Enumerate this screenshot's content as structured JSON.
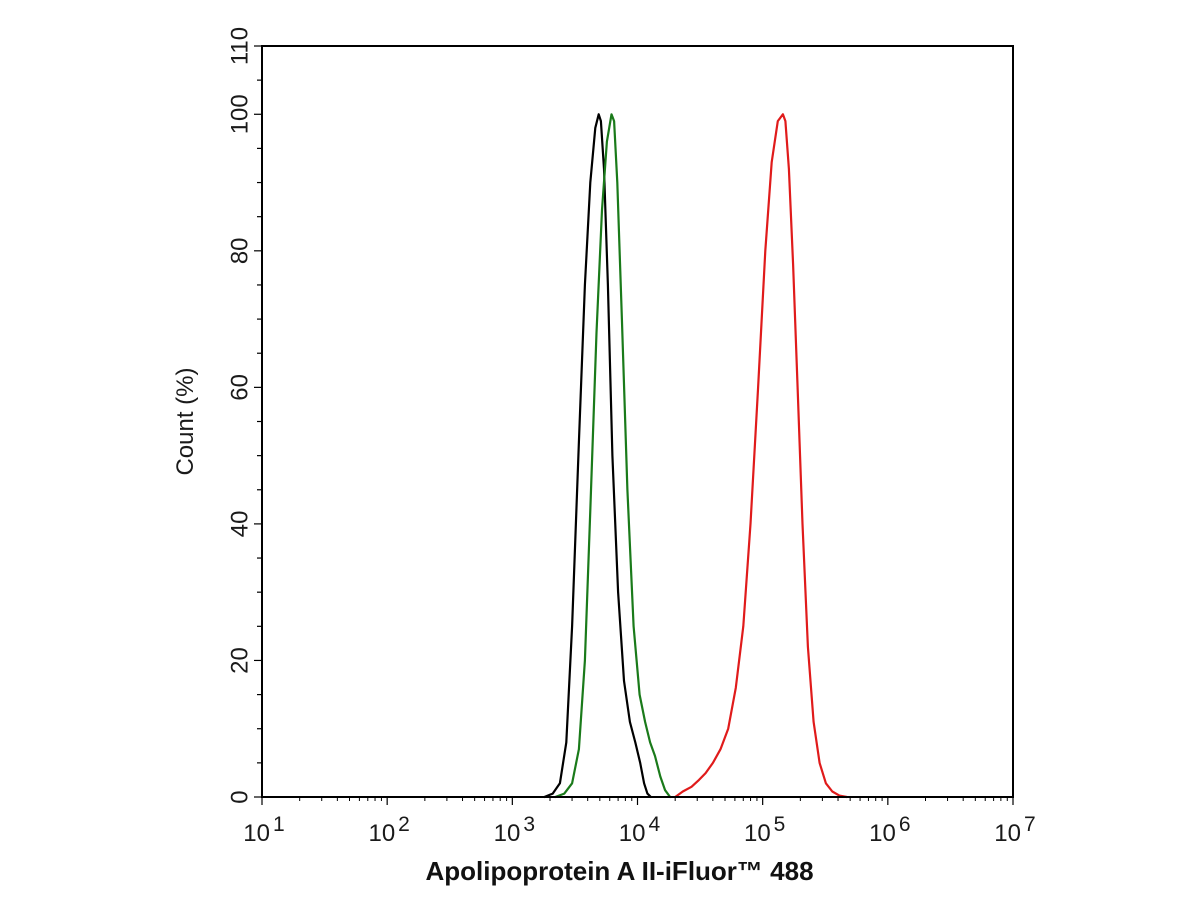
{
  "chart_data": {
    "type": "line",
    "title": "",
    "xlabel": "Apolipoprotein A II-iFluor™ 488",
    "ylabel": "Count  (%)",
    "xscale": "log",
    "xlim": [
      10,
      10000000
    ],
    "ylim": [
      0,
      110
    ],
    "grid": false,
    "legend": "none",
    "x_ticks": [
      {
        "base": "10",
        "exp": "1",
        "value": 10
      },
      {
        "base": "10",
        "exp": "2",
        "value": 100
      },
      {
        "base": "10",
        "exp": "3",
        "value": 1000
      },
      {
        "base": "10",
        "exp": "4",
        "value": 10000
      },
      {
        "base": "10",
        "exp": "5",
        "value": 100000
      },
      {
        "base": "10",
        "exp": "6",
        "value": 1000000
      },
      {
        "base": "10",
        "exp": "7",
        "value": 10000000
      }
    ],
    "y_ticks": [
      {
        "label": "0",
        "value": 0
      },
      {
        "label": "20",
        "value": 20
      },
      {
        "label": "40",
        "value": 40
      },
      {
        "label": "60",
        "value": 60
      },
      {
        "label": "80",
        "value": 80
      },
      {
        "label": "100",
        "value": 100
      },
      {
        "label": "110",
        "value": 110
      }
    ],
    "series": [
      {
        "color": "#000000",
        "x": [
          1800,
          2100,
          2400,
          2700,
          3000,
          3400,
          3800,
          4200,
          4600,
          4900,
          5100,
          5400,
          5800,
          6300,
          7000,
          7800,
          8700,
          9600,
          10500,
          11300,
          12000,
          12800
        ],
        "y": [
          0,
          0.5,
          2,
          8,
          25,
          52,
          75,
          90,
          98,
          100,
          99,
          92,
          75,
          50,
          30,
          17,
          11,
          8,
          5,
          2,
          0.5,
          0
        ]
      },
      {
        "color": "#1a7a1a",
        "x": [
          2200,
          2600,
          3000,
          3400,
          3800,
          4200,
          4700,
          5200,
          5700,
          6200,
          6500,
          6900,
          7500,
          8300,
          9300,
          10400,
          11500,
          12600,
          13800,
          15200,
          16600,
          18200
        ],
        "y": [
          0,
          0.5,
          2,
          7,
          20,
          42,
          68,
          86,
          96,
          100,
          99,
          90,
          70,
          45,
          25,
          15,
          11,
          8,
          6,
          3,
          1,
          0
        ]
      },
      {
        "color": "#e01b1b",
        "x": [
          20000,
          23000,
          27000,
          31000,
          35000,
          40000,
          46000,
          53000,
          61000,
          70000,
          80000,
          92000,
          105000,
          118000,
          132000,
          145000,
          152000,
          162000,
          175000,
          190000,
          208000,
          230000,
          255000,
          285000,
          320000,
          360000,
          410000,
          470000
        ],
        "y": [
          0,
          0.8,
          1.5,
          2.5,
          3.5,
          5,
          7,
          10,
          16,
          25,
          40,
          60,
          80,
          93,
          99,
          100,
          99,
          92,
          78,
          60,
          40,
          22,
          11,
          5,
          2,
          0.8,
          0.2,
          0
        ]
      }
    ]
  }
}
